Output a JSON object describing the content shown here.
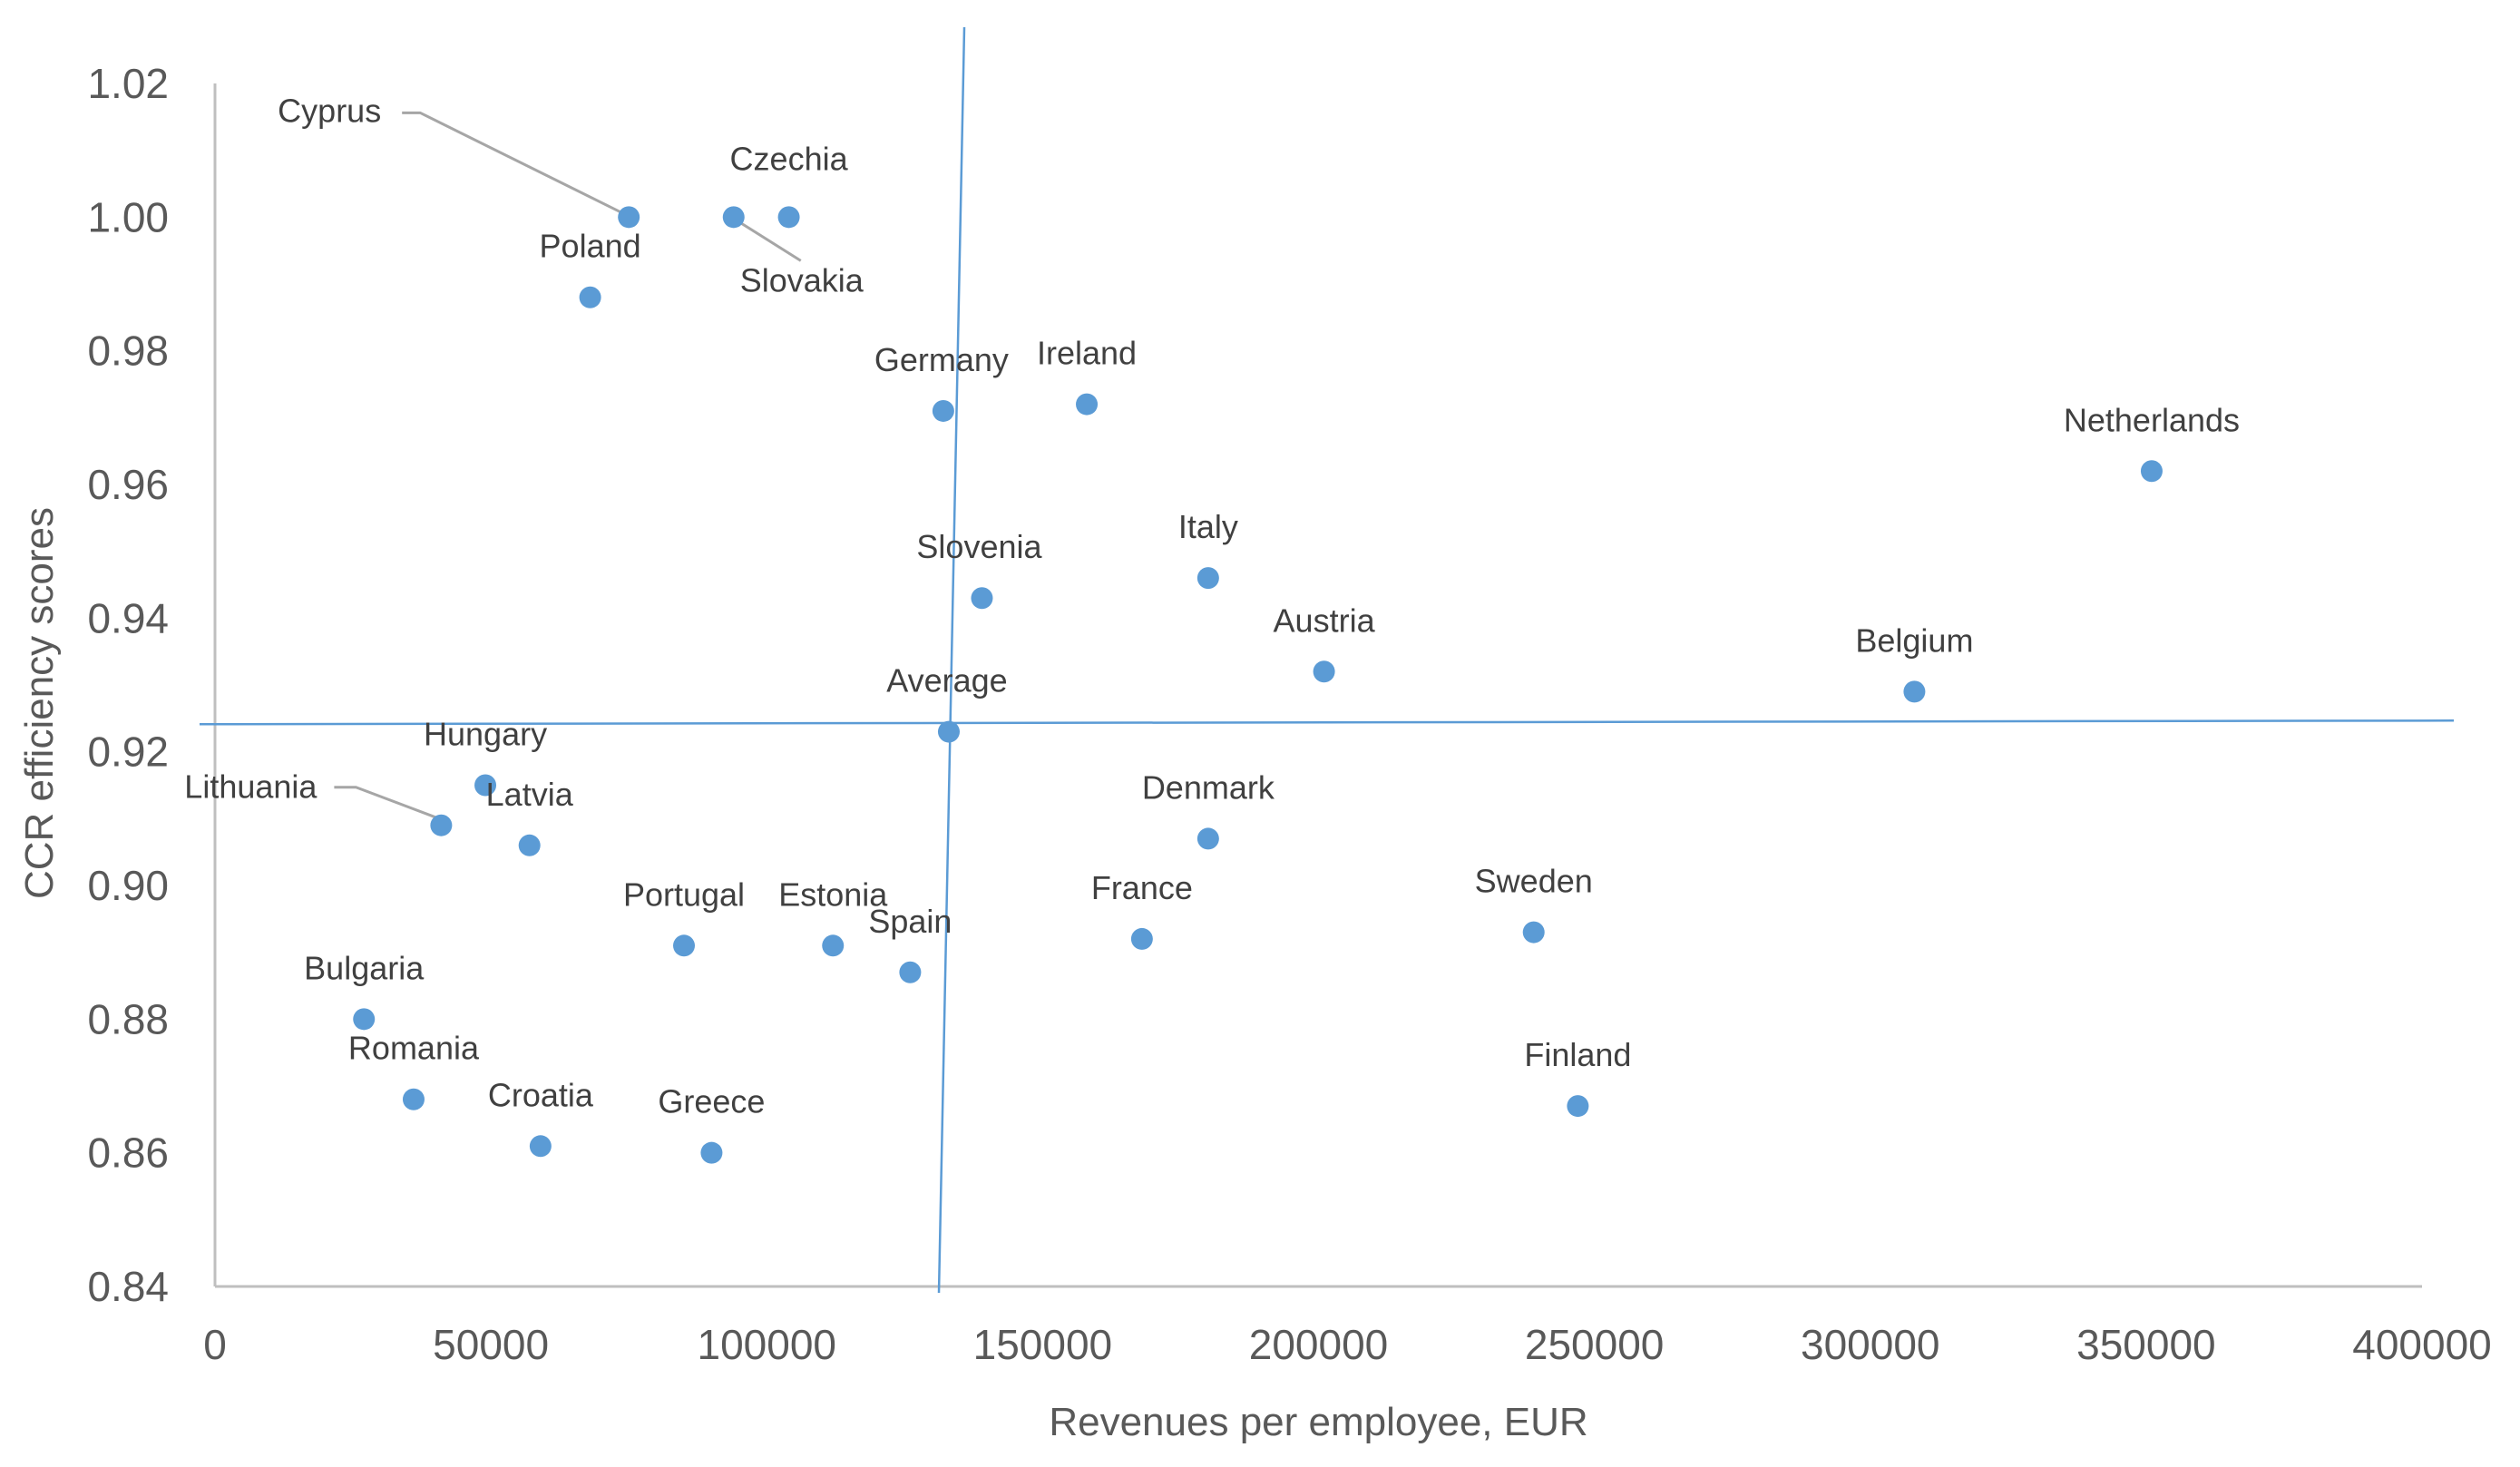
{
  "chart_data": {
    "type": "scatter",
    "xlabel": "Revenues per employee, EUR",
    "ylabel": "CCR efficiency scores",
    "xlim": [
      0,
      400000
    ],
    "ylim": [
      0.84,
      1.02
    ],
    "xticks": [
      "0",
      "50000",
      "100000",
      "150000",
      "200000",
      "250000",
      "300000",
      "350000",
      "400000"
    ],
    "yticks": [
      "0.84",
      "0.86",
      "0.88",
      "0.90",
      "0.92",
      "0.94",
      "0.96",
      "0.98",
      "1.00",
      "1.02"
    ],
    "reference_lines": {
      "x": 133500,
      "y": 0.9244
    },
    "point_color": "#5B9BD5",
    "ref_line_color": "#5B9BD5",
    "points": [
      {
        "label": "Cyprus",
        "x": 75000,
        "y": 1.0
      },
      {
        "label": "Czechia",
        "x": 104000,
        "y": 1.0
      },
      {
        "label": "Slovakia",
        "x": 94000,
        "y": 1.0
      },
      {
        "label": "Poland",
        "x": 68000,
        "y": 0.988
      },
      {
        "label": "Germany",
        "x": 132000,
        "y": 0.971
      },
      {
        "label": "Ireland",
        "x": 158000,
        "y": 0.972
      },
      {
        "label": "Netherlands",
        "x": 351000,
        "y": 0.962
      },
      {
        "label": "Italy",
        "x": 180000,
        "y": 0.946
      },
      {
        "label": "Slovenia",
        "x": 139000,
        "y": 0.943
      },
      {
        "label": "Austria",
        "x": 201000,
        "y": 0.932
      },
      {
        "label": "Belgium",
        "x": 308000,
        "y": 0.929
      },
      {
        "label": "Average",
        "x": 133000,
        "y": 0.923
      },
      {
        "label": "Hungary",
        "x": 49000,
        "y": 0.915
      },
      {
        "label": "Lithuania",
        "x": 41000,
        "y": 0.909
      },
      {
        "label": "Latvia",
        "x": 57000,
        "y": 0.906
      },
      {
        "label": "Denmark",
        "x": 180000,
        "y": 0.907
      },
      {
        "label": "Portugal",
        "x": 85000,
        "y": 0.891
      },
      {
        "label": "Estonia",
        "x": 112000,
        "y": 0.891
      },
      {
        "label": "Spain",
        "x": 126000,
        "y": 0.887
      },
      {
        "label": "France",
        "x": 168000,
        "y": 0.892
      },
      {
        "label": "Sweden",
        "x": 239000,
        "y": 0.893
      },
      {
        "label": "Bulgaria",
        "x": 27000,
        "y": 0.88
      },
      {
        "label": "Romania",
        "x": 36000,
        "y": 0.868
      },
      {
        "label": "Croatia",
        "x": 59000,
        "y": 0.861
      },
      {
        "label": "Greece",
        "x": 90000,
        "y": 0.86
      },
      {
        "label": "Finland",
        "x": 247000,
        "y": 0.867
      }
    ]
  }
}
